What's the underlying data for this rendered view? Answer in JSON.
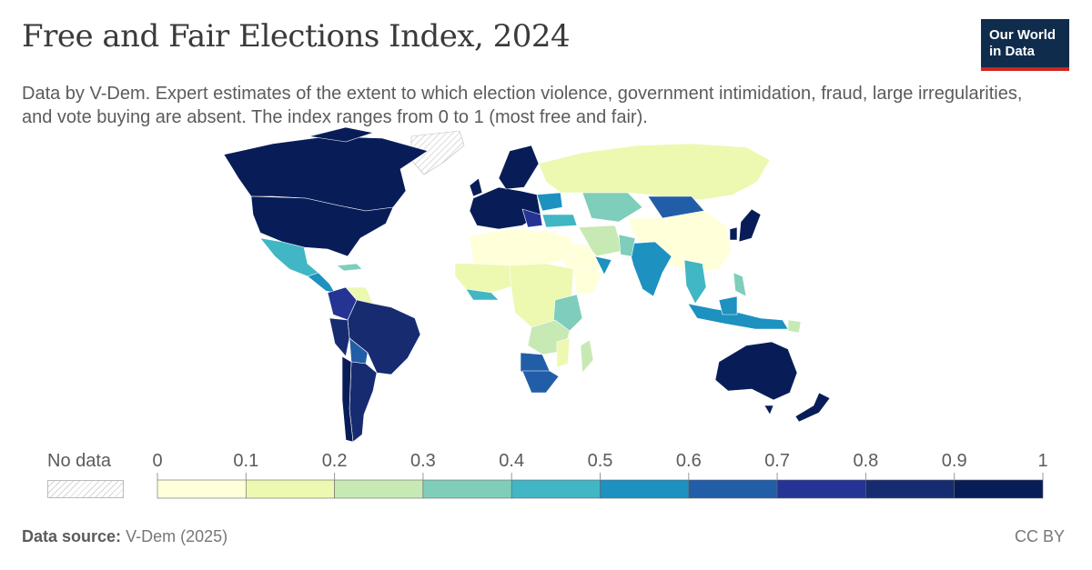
{
  "header": {
    "title": "Free and Fair Elections Index, 2024",
    "subtitle": "Data by V-Dem. Expert estimates of the extent to which election violence, government intimidation, fraud, large irregularities, and vote buying are absent. The index ranges from 0 to 1 (most free and fair).",
    "logo_line1": "Our World",
    "logo_line2": "in Data"
  },
  "legend": {
    "no_data_label": "No data",
    "ticks": [
      "0",
      "0.1",
      "0.2",
      "0.3",
      "0.4",
      "0.5",
      "0.6",
      "0.7",
      "0.8",
      "0.9",
      "1"
    ],
    "bins": [
      {
        "range": [
          0,
          0.1
        ],
        "color": "#ffffd9"
      },
      {
        "range": [
          0.1,
          0.2
        ],
        "color": "#edf8b1"
      },
      {
        "range": [
          0.2,
          0.3
        ],
        "color": "#c7e9b4"
      },
      {
        "range": [
          0.3,
          0.4
        ],
        "color": "#7fcdbb"
      },
      {
        "range": [
          0.4,
          0.5
        ],
        "color": "#41b6c4"
      },
      {
        "range": [
          0.5,
          0.6
        ],
        "color": "#1d91c0"
      },
      {
        "range": [
          0.6,
          0.7
        ],
        "color": "#225ea8"
      },
      {
        "range": [
          0.7,
          0.8
        ],
        "color": "#253494"
      },
      {
        "range": [
          0.8,
          0.9
        ],
        "color": "#172c70"
      },
      {
        "range": [
          0.9,
          1.0
        ],
        "color": "#081d58"
      }
    ]
  },
  "footer": {
    "source_label": "Data source:",
    "source_value": "V-Dem (2025)",
    "license": "CC BY"
  },
  "chart_data": {
    "type": "choropleth",
    "year": "2024",
    "scale": [
      0,
      1
    ],
    "regions": [
      {
        "name": "Canada",
        "band": "0.9–1"
      },
      {
        "name": "United States",
        "band": "0.9–1"
      },
      {
        "name": "Mexico",
        "band": "0.4–0.5"
      },
      {
        "name": "Central America",
        "band": "0.4–0.6"
      },
      {
        "name": "Venezuela",
        "band": "0.1–0.2"
      },
      {
        "name": "Colombia",
        "band": "0.7–0.8"
      },
      {
        "name": "Brazil",
        "band": "0.8–0.9"
      },
      {
        "name": "Peru",
        "band": "0.8–0.9"
      },
      {
        "name": "Bolivia",
        "band": "0.6–0.7"
      },
      {
        "name": "Paraguay",
        "band": "0.6–0.7"
      },
      {
        "name": "Argentina",
        "band": "0.8–0.9"
      },
      {
        "name": "Chile",
        "band": "0.9–1"
      },
      {
        "name": "Uruguay",
        "band": "0.9–1"
      },
      {
        "name": "Greenland",
        "band": "No data"
      },
      {
        "name": "Western Europe",
        "band": "0.9–1"
      },
      {
        "name": "Scandinavia",
        "band": "0.9–1"
      },
      {
        "name": "Ukraine",
        "band": "0.5–0.6"
      },
      {
        "name": "Russia",
        "band": "0.1–0.2"
      },
      {
        "name": "Kazakhstan",
        "band": "0.3–0.4"
      },
      {
        "name": "Mongolia",
        "band": "0.6–0.7"
      },
      {
        "name": "China",
        "band": "0–0.1"
      },
      {
        "name": "Japan",
        "band": "0.9–1"
      },
      {
        "name": "South Korea",
        "band": "0.9–1"
      },
      {
        "name": "India",
        "band": "0.5–0.6"
      },
      {
        "name": "Iran",
        "band": "0.2–0.3"
      },
      {
        "name": "Saudi Arabia",
        "band": "0–0.1"
      },
      {
        "name": "Turkey",
        "band": "0.4–0.5"
      },
      {
        "name": "North Africa",
        "band": "0–0.2"
      },
      {
        "name": "Sahel",
        "band": "0–0.1"
      },
      {
        "name": "West Africa coast",
        "band": "0.4–0.6"
      },
      {
        "name": "Central Africa",
        "band": "0.1–0.2"
      },
      {
        "name": "East Africa",
        "band": "0.2–0.4"
      },
      {
        "name": "Namibia/Botswana",
        "band": "0.6–0.7"
      },
      {
        "name": "South Africa",
        "band": "0.6–0.7"
      },
      {
        "name": "Madagascar",
        "band": "0.2–0.3"
      },
      {
        "name": "Southeast Asia",
        "band": "0.4–0.6"
      },
      {
        "name": "Indonesia",
        "band": "0.5–0.6"
      },
      {
        "name": "Australia",
        "band": "0.9–1"
      },
      {
        "name": "New Zealand",
        "band": "0.9–1"
      }
    ]
  }
}
